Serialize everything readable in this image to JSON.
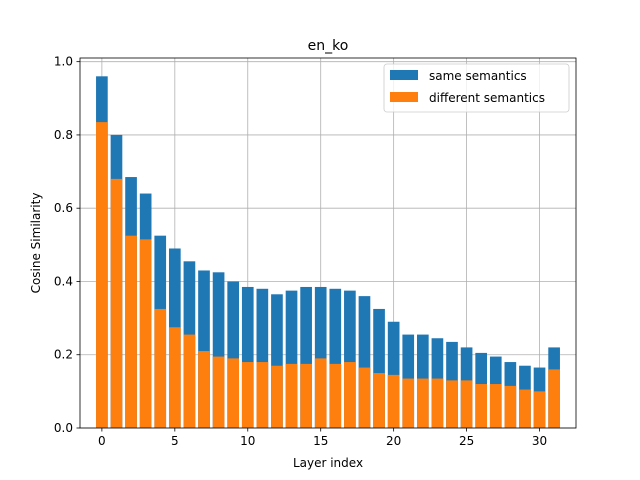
{
  "chart_data": {
    "type": "bar",
    "title": "en_ko",
    "xlabel": "Layer index",
    "ylabel": "Cosine Similarity",
    "x": [
      0,
      1,
      2,
      3,
      4,
      5,
      6,
      7,
      8,
      9,
      10,
      11,
      12,
      13,
      14,
      15,
      16,
      17,
      18,
      19,
      20,
      21,
      22,
      23,
      24,
      25,
      26,
      27,
      28,
      29,
      30,
      31
    ],
    "xlim": [
      -1.5,
      32.5
    ],
    "ylim": [
      0,
      1.01
    ],
    "xticks": [
      0,
      5,
      10,
      15,
      20,
      25,
      30
    ],
    "yticks": [
      0.0,
      0.2,
      0.4,
      0.6,
      0.8,
      1.0
    ],
    "xtick_labels": [
      "0",
      "5",
      "10",
      "15",
      "20",
      "25",
      "30"
    ],
    "ytick_labels": [
      "0.0",
      "0.2",
      "0.4",
      "0.6",
      "0.8",
      "1.0"
    ],
    "grid": true,
    "legend_position": "upper right",
    "series": [
      {
        "name": "same semantics",
        "color": "#1f77b4",
        "values": [
          0.96,
          0.8,
          0.685,
          0.64,
          0.525,
          0.49,
          0.455,
          0.43,
          0.425,
          0.4,
          0.385,
          0.38,
          0.365,
          0.375,
          0.385,
          0.385,
          0.38,
          0.375,
          0.36,
          0.325,
          0.29,
          0.255,
          0.255,
          0.245,
          0.235,
          0.22,
          0.205,
          0.195,
          0.18,
          0.17,
          0.165,
          0.22
        ]
      },
      {
        "name": "different semantics",
        "color": "#ff7f0e",
        "values": [
          0.835,
          0.68,
          0.525,
          0.515,
          0.325,
          0.275,
          0.255,
          0.21,
          0.195,
          0.19,
          0.18,
          0.18,
          0.17,
          0.175,
          0.175,
          0.19,
          0.175,
          0.18,
          0.165,
          0.15,
          0.145,
          0.135,
          0.135,
          0.135,
          0.13,
          0.13,
          0.12,
          0.12,
          0.115,
          0.105,
          0.1,
          0.16
        ]
      }
    ]
  }
}
